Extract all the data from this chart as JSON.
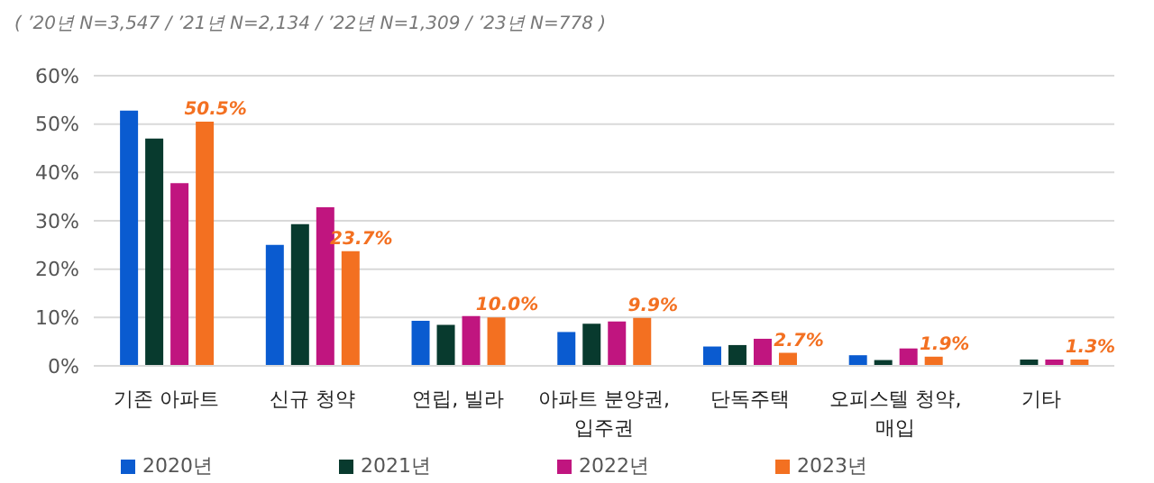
{
  "chart_data": {
    "type": "bar",
    "subtitle": "( ’20년 N=3,547 / ’21년 N=2,134 / ’22년 N=1,309 / ’23년 N=778 )",
    "categories": [
      "기존 아파트",
      "신규 청약",
      "연립, 빌라",
      "아파트 분양권, 입주권",
      "단독주택",
      "오피스텔 청약, 매입",
      "기타"
    ],
    "series": [
      {
        "name": "2020년",
        "color": "#0a5bd0",
        "values": [
          52.8,
          25.0,
          9.3,
          7.0,
          4.0,
          2.2,
          null
        ]
      },
      {
        "name": "2021년",
        "color": "#083a2e",
        "values": [
          47.0,
          29.3,
          8.5,
          8.7,
          4.3,
          1.2,
          1.3
        ]
      },
      {
        "name": "2022년",
        "color": "#c0157f",
        "values": [
          37.8,
          32.8,
          10.3,
          9.2,
          5.6,
          3.6,
          1.3
        ]
      },
      {
        "name": "2023년",
        "color": "#f37021",
        "values": [
          50.5,
          23.7,
          10.0,
          9.9,
          2.7,
          1.9,
          1.3
        ],
        "value_labels": [
          "50.5%",
          "23.7%",
          "10.0%",
          "9.9%",
          "2.7%",
          "1.9%",
          "1.3%"
        ]
      }
    ],
    "ylim": [
      0,
      60
    ],
    "yticks": [
      {
        "value": 0,
        "label": "0%"
      },
      {
        "value": 10,
        "label": "10%"
      },
      {
        "value": 20,
        "label": "20%"
      },
      {
        "value": 30,
        "label": "30%"
      },
      {
        "value": 40,
        "label": "40%"
      },
      {
        "value": 50,
        "label": "50%"
      },
      {
        "value": 60,
        "label": "60%"
      }
    ],
    "grid": "y",
    "legend": "bottom"
  }
}
